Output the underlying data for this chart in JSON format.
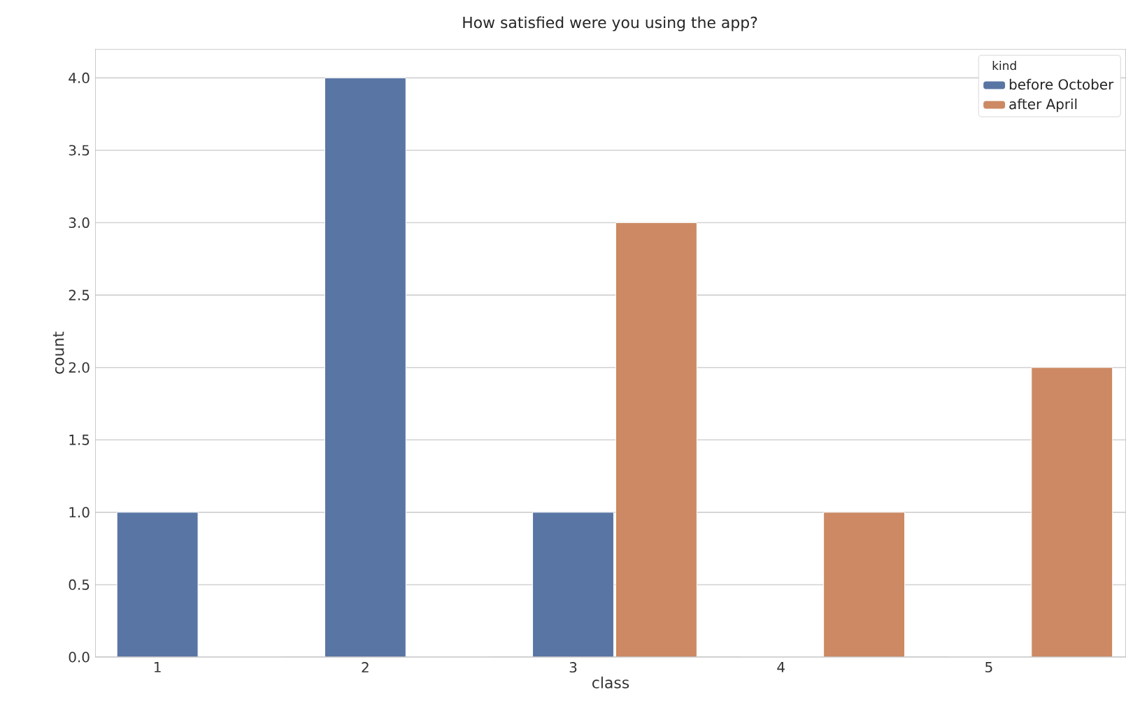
{
  "chart_data": {
    "type": "bar",
    "title": "How satisfied were you using the app?",
    "xlabel": "class",
    "ylabel": "count",
    "legend_title": "kind",
    "categories": [
      "1",
      "2",
      "3",
      "4",
      "5"
    ],
    "series": [
      {
        "name": "before October",
        "color": "#5975a4",
        "values": [
          1,
          4,
          1,
          0,
          0
        ]
      },
      {
        "name": "after April",
        "color": "#cc8963",
        "values": [
          0,
          0,
          3,
          1,
          2
        ]
      }
    ],
    "ylim": [
      0,
      4.2
    ],
    "yticks": [
      {
        "value": 0,
        "label": "0.0"
      },
      {
        "value": 0.5,
        "label": "0.5"
      },
      {
        "value": 1,
        "label": "1.0"
      },
      {
        "value": 1.5,
        "label": "1.5"
      },
      {
        "value": 2,
        "label": "2.0"
      },
      {
        "value": 2.5,
        "label": "2.5"
      },
      {
        "value": 3,
        "label": "3.0"
      },
      {
        "value": 3.5,
        "label": "3.5"
      },
      {
        "value": 4,
        "label": "4.0"
      }
    ],
    "grid": "y",
    "legend": "top right"
  }
}
